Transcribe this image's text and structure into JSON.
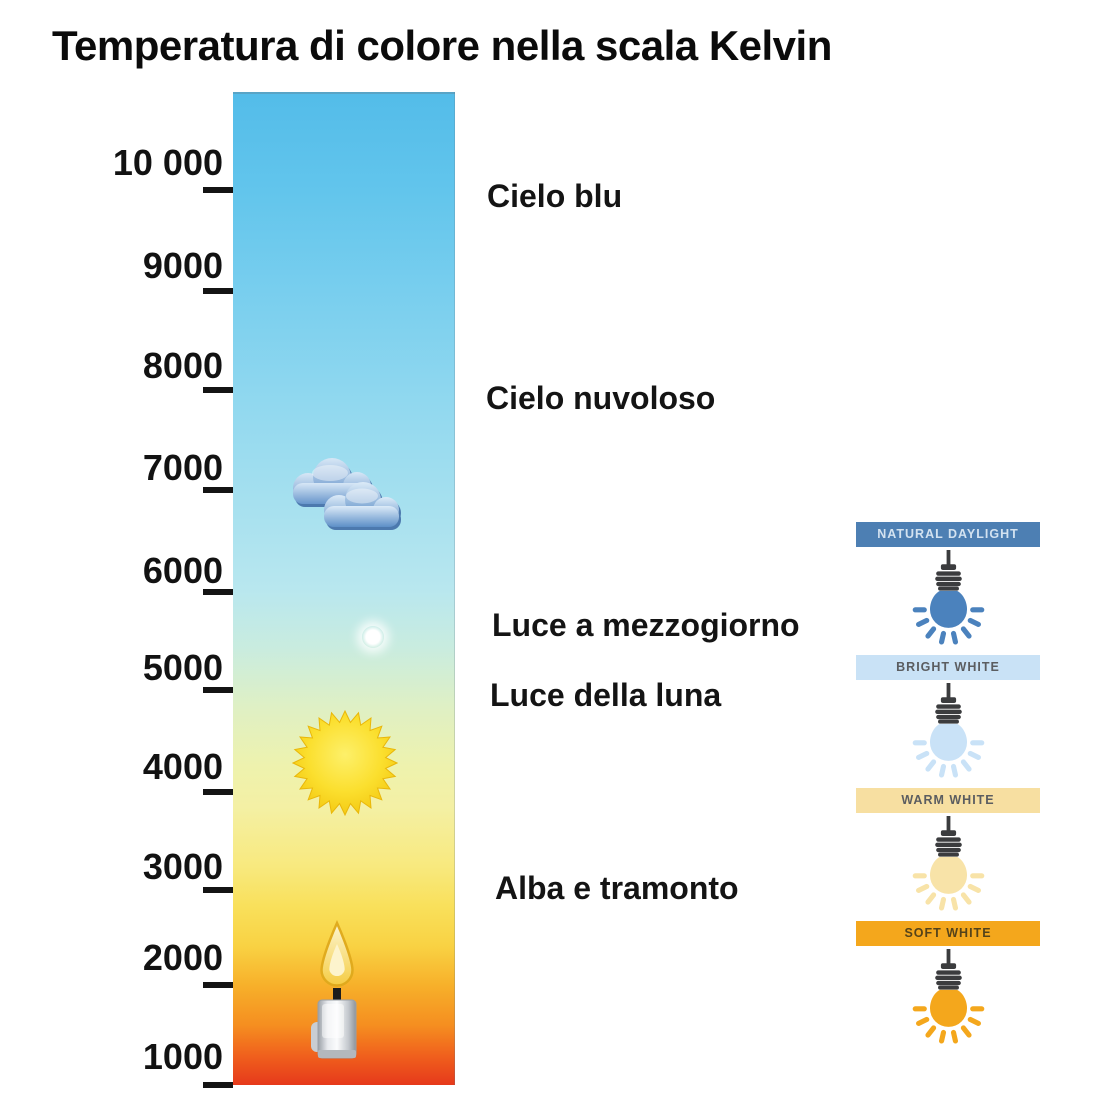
{
  "title": "Temperatura di colore nella scala Kelvin",
  "kelvin_scale": {
    "tick_labels": [
      "10 000",
      "9000",
      "8000",
      "7000",
      "6000",
      "5000",
      "4000",
      "3000",
      "2000",
      "1000"
    ],
    "gradient_stops": [
      "#53bce9",
      "#78ceee",
      "#a3dfef",
      "#b8e7ef",
      "#dff0c4",
      "#f4f0a4",
      "#f9e05b",
      "#f7b02a",
      "#f0611d",
      "#e6391b"
    ]
  },
  "annotations": [
    "Cielo blu",
    "Cielo nuvoloso",
    "Luce a mezzogiorno",
    "Luce della luna",
    "Alba e tramonto"
  ],
  "icons": {
    "clouds": "clouds-icon",
    "moon": "moon-glow-icon",
    "sun": "sun-icon",
    "candle": "candle-icon",
    "bulb": "hanging-lightbulb-icon"
  },
  "bulb_panels": [
    {
      "label": "NATURAL DAYLIGHT",
      "header_bg": "#4d7fb3",
      "header_text_color": "#d3e2f0",
      "bulb_color": "#4b82bd"
    },
    {
      "label": "BRIGHT WHITE",
      "header_bg": "#c9e2f6",
      "header_text_color": "#5b5d60",
      "bulb_color": "#c9e2f7"
    },
    {
      "label": "WARM WHITE",
      "header_bg": "#f7dfa1",
      "header_text_color": "#5b5d60",
      "bulb_color": "#f8e3a8"
    },
    {
      "label": "SOFT WHITE",
      "header_bg": "#f4a71c",
      "header_text_color": "#55431a",
      "bulb_color": "#f4a71c"
    }
  ]
}
